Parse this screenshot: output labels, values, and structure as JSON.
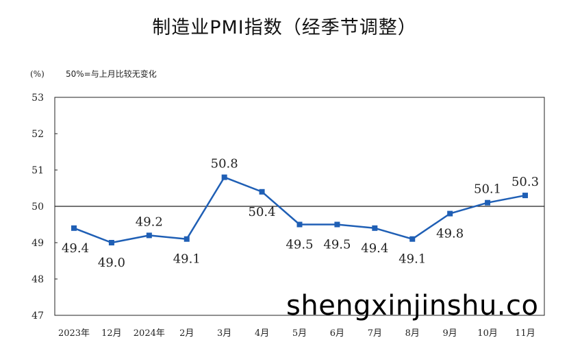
{
  "chart_data": {
    "type": "line",
    "title": "制造业PMI指数（经季节调整）",
    "unit_label": "(%)",
    "note": "50%=与上月比较无变化",
    "categories": [
      "2023年",
      "12月",
      "2024年",
      "2月",
      "3月",
      "4月",
      "5月",
      "6月",
      "7月",
      "8月",
      "9月",
      "10月",
      "11月"
    ],
    "series": [
      {
        "values": [
          49.4,
          49.0,
          49.2,
          49.1,
          50.8,
          50.4,
          49.5,
          49.5,
          49.4,
          49.1,
          49.8,
          50.1,
          50.3
        ],
        "color": "#1f5fb5"
      }
    ],
    "data_labels": [
      "49.4",
      "49.0",
      "49.2",
      "49.1",
      "50.8",
      "50.4",
      "49.5",
      "49.5",
      "49.4",
      "49.1",
      "49.8",
      "50.1",
      "50.3"
    ],
    "ylim": [
      47,
      53
    ],
    "yticks": [
      47,
      48,
      49,
      50,
      51,
      52,
      53
    ],
    "reference_line": 50,
    "grid": false,
    "legend": "none"
  },
  "watermark": "shengxinjinshu.co"
}
